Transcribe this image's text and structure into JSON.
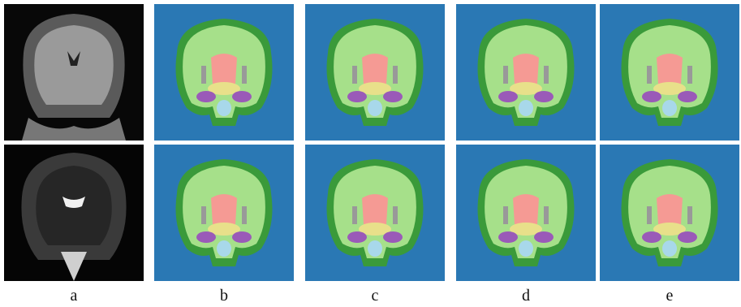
{
  "panel_labels": [
    "a",
    "b",
    "c",
    "d",
    "e"
  ]
}
